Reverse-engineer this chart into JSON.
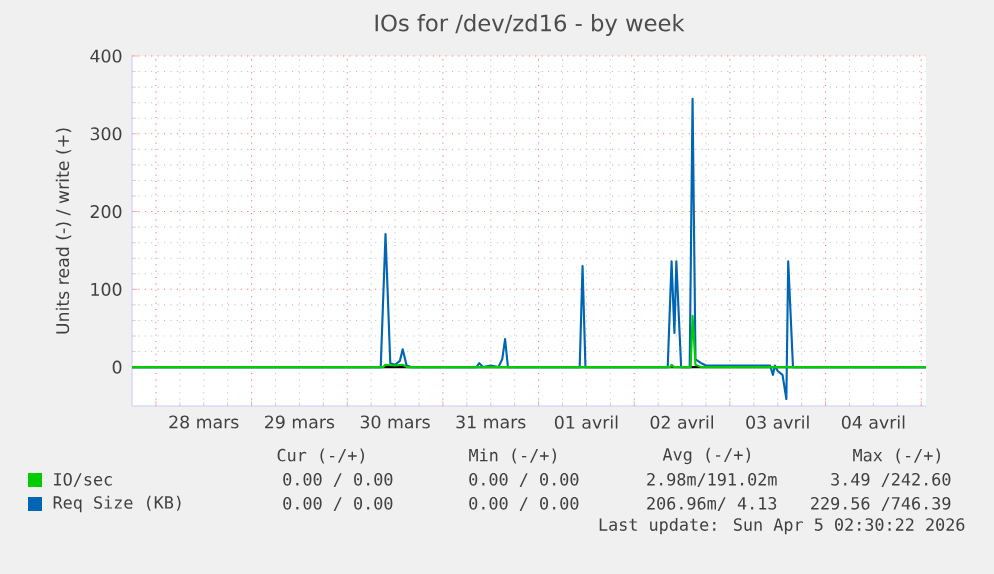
{
  "chart_data": {
    "type": "line",
    "title": "IOs for /dev/zd16 - by week",
    "ylabel": "Units read (-) / write (+)",
    "xlim": [
      "2026-03-27T18:00",
      "2026-04-05T01:12"
    ],
    "xticks": [
      {
        "value": "2026-03-28T00:00",
        "label": null
      },
      {
        "value": "2026-03-29T00:00",
        "label": null
      },
      {
        "value": "2026-03-30T00:00",
        "label": null
      },
      {
        "value": "2026-03-31T00:00",
        "label": null
      },
      {
        "value": "2026-04-01T00:00",
        "label": null
      },
      {
        "value": "2026-04-02T00:00",
        "label": null
      },
      {
        "value": "2026-04-03T00:00",
        "label": null
      },
      {
        "value": "2026-04-04T00:00",
        "label": null
      },
      {
        "value": "2026-04-05T00:00",
        "label": null
      },
      {
        "value": "2026-03-28T12:00",
        "label": "28 mars"
      },
      {
        "value": "2026-03-29T12:00",
        "label": "29 mars"
      },
      {
        "value": "2026-03-30T12:00",
        "label": "30 mars"
      },
      {
        "value": "2026-03-31T12:00",
        "label": "31 mars"
      },
      {
        "value": "2026-04-01T12:00",
        "label": "01 avril"
      },
      {
        "value": "2026-04-02T12:00",
        "label": "02 avril"
      },
      {
        "value": "2026-04-03T12:00",
        "label": "03 avril"
      },
      {
        "value": "2026-04-04T12:00",
        "label": "04 avril"
      }
    ],
    "ylim": [
      -50,
      400
    ],
    "yticks": [
      0,
      100,
      200,
      300,
      400
    ],
    "grid": true,
    "legend": "bottom",
    "ref_lines": [
      {
        "axis": "y",
        "value": 0,
        "color": "#000000"
      }
    ],
    "series": [
      {
        "name": "Req Size (KB)",
        "color": "#0066b3",
        "x": [
          "2026-03-27T18:00",
          "2026-03-30T08:24",
          "2026-03-30T09:36",
          "2026-03-30T10:48",
          "2026-03-30T12:00",
          "2026-03-30T13:12",
          "2026-03-30T13:55",
          "2026-03-30T14:53",
          "2026-03-30T16:05",
          "2026-03-31T08:24",
          "2026-03-31T09:07",
          "2026-03-31T10:05",
          "2026-03-31T12:00",
          "2026-03-31T13:55",
          "2026-03-31T14:53",
          "2026-03-31T15:36",
          "2026-03-31T16:19",
          "2026-04-01T10:19",
          "2026-04-01T11:02",
          "2026-04-01T11:46",
          "2026-04-02T08:24",
          "2026-04-02T09:22",
          "2026-04-02T10:05",
          "2026-04-02T10:34",
          "2026-04-02T11:46",
          "2026-04-02T13:55",
          "2026-04-02T14:38",
          "2026-04-02T15:22",
          "2026-04-02T16:48",
          "2026-04-02T18:00",
          "2026-04-03T10:05",
          "2026-04-03T10:48",
          "2026-04-03T11:17",
          "2026-04-03T12:00",
          "2026-04-03T13:12",
          "2026-04-03T14:10",
          "2026-04-03T14:38",
          "2026-04-03T15:50",
          "2026-04-05T01:12"
        ],
        "values": [
          0,
          0,
          171,
          5,
          3,
          8,
          23,
          2,
          0,
          0,
          5,
          0,
          2,
          0,
          10,
          36,
          0,
          0,
          130,
          0,
          0,
          136,
          44,
          136,
          0,
          0,
          345,
          10,
          5,
          2,
          2,
          -10,
          2,
          -5,
          -10,
          -41,
          136,
          0,
          0
        ]
      },
      {
        "name": "IO/sec",
        "color": "#00cc00",
        "x": [
          "2026-03-27T18:00",
          "2026-03-30T09:00",
          "2026-03-30T09:36",
          "2026-03-30T12:00",
          "2026-03-30T13:55",
          "2026-03-30T15:00",
          "2026-04-02T09:00",
          "2026-04-02T09:22",
          "2026-04-02T10:00",
          "2026-04-02T14:10",
          "2026-04-02T14:38",
          "2026-04-02T15:22",
          "2026-04-02T16:48",
          "2026-04-05T01:12"
        ],
        "values": [
          0,
          0,
          3,
          2,
          3,
          0,
          0,
          3,
          0,
          0,
          66,
          3,
          0,
          0
        ]
      }
    ],
    "annotations": [
      "Cur (-/+)",
      "Min (-/+)",
      "Avg (-/+)",
      "Max (-/+)",
      "0.00 / 0.00",
      "0.00 / 0.00",
      "2.98m/191.02m",
      "3.49 /242.60",
      "0.00 / 0.00",
      "0.00 / 0.00",
      "206.96m/ 4.13",
      "229.56 /746.39",
      "Last update: Sun Apr  5 02:30:22 2026"
    ]
  }
}
